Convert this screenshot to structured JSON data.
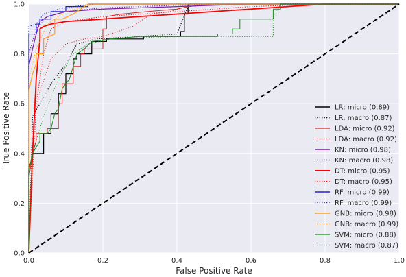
{
  "chart_data": {
    "type": "line",
    "title": "",
    "xlabel": "False Positive Rate",
    "ylabel": "True Positive Rate",
    "xlim": [
      0,
      1
    ],
    "ylim": [
      0,
      1
    ],
    "xticks": [
      "0.0",
      "0.2",
      "0.4",
      "0.6",
      "0.8",
      "1.0"
    ],
    "yticks": [
      "0.0",
      "0.2",
      "0.4",
      "0.6",
      "0.8",
      "1.0"
    ],
    "grid": true,
    "legend_position": "lower-right",
    "background": "#eaeaf2",
    "series": [
      {
        "name": "LR: micro (0.89)",
        "color": "#000000",
        "dash": "solid",
        "width": 1.2,
        "points": [
          [
            0,
            0
          ],
          [
            0,
            0.35
          ],
          [
            0.01,
            0.37
          ],
          [
            0.01,
            0.4
          ],
          [
            0.04,
            0.4
          ],
          [
            0.04,
            0.48
          ],
          [
            0.06,
            0.48
          ],
          [
            0.06,
            0.56
          ],
          [
            0.08,
            0.56
          ],
          [
            0.08,
            0.64
          ],
          [
            0.1,
            0.64
          ],
          [
            0.1,
            0.72
          ],
          [
            0.12,
            0.72
          ],
          [
            0.12,
            0.78
          ],
          [
            0.13,
            0.78
          ],
          [
            0.13,
            0.8
          ],
          [
            0.17,
            0.8
          ],
          [
            0.17,
            0.85
          ],
          [
            0.21,
            0.85
          ],
          [
            0.21,
            0.86
          ],
          [
            0.31,
            0.86
          ],
          [
            0.31,
            0.87
          ],
          [
            0.41,
            0.87
          ],
          [
            0.41,
            0.89
          ],
          [
            0.42,
            0.89
          ],
          [
            0.42,
            0.96
          ],
          [
            0.43,
            0.96
          ],
          [
            0.43,
            1.0
          ],
          [
            1,
            1
          ]
        ]
      },
      {
        "name": "LR: macro (0.87)",
        "color": "#000000",
        "dash": "dotted",
        "width": 1.2,
        "points": [
          [
            0,
            0
          ],
          [
            0.01,
            0.55
          ],
          [
            0.03,
            0.6
          ],
          [
            0.06,
            0.68
          ],
          [
            0.1,
            0.76
          ],
          [
            0.13,
            0.84
          ],
          [
            0.18,
            0.86
          ],
          [
            0.3,
            0.87
          ],
          [
            0.4,
            0.88
          ],
          [
            0.43,
            0.99
          ],
          [
            0.5,
            1.0
          ],
          [
            1,
            1
          ]
        ]
      },
      {
        "name": "LDA: micro (0.92)",
        "color": "#d62728",
        "dash": "solid",
        "width": 1.0,
        "points": [
          [
            0,
            0
          ],
          [
            0,
            0.3
          ],
          [
            0.01,
            0.4
          ],
          [
            0.02,
            0.45
          ],
          [
            0.02,
            0.48
          ],
          [
            0.05,
            0.48
          ],
          [
            0.05,
            0.5
          ],
          [
            0.08,
            0.5
          ],
          [
            0.08,
            0.6
          ],
          [
            0.09,
            0.6
          ],
          [
            0.09,
            0.68
          ],
          [
            0.12,
            0.68
          ],
          [
            0.12,
            0.75
          ],
          [
            0.14,
            0.75
          ],
          [
            0.14,
            0.8
          ],
          [
            0.15,
            0.8
          ],
          [
            0.15,
            0.82
          ],
          [
            0.2,
            0.82
          ],
          [
            0.2,
            0.9
          ],
          [
            0.21,
            0.9
          ],
          [
            0.21,
            0.95
          ],
          [
            0.25,
            0.96
          ],
          [
            0.32,
            0.97
          ],
          [
            0.4,
            0.98
          ],
          [
            0.43,
            0.99
          ],
          [
            0.5,
            1.0
          ],
          [
            1,
            1
          ]
        ]
      },
      {
        "name": "LDA: macro (0.92)",
        "color": "#d62728",
        "dash": "dotted",
        "width": 1.0,
        "points": [
          [
            0,
            0
          ],
          [
            0.01,
            0.5
          ],
          [
            0.03,
            0.65
          ],
          [
            0.06,
            0.78
          ],
          [
            0.1,
            0.84
          ],
          [
            0.15,
            0.86
          ],
          [
            0.2,
            0.87
          ],
          [
            0.28,
            0.91
          ],
          [
            0.33,
            0.96
          ],
          [
            0.38,
            0.97
          ],
          [
            0.43,
            0.99
          ],
          [
            0.5,
            1.0
          ],
          [
            1,
            1
          ]
        ]
      },
      {
        "name": "KN: micro (0.98)",
        "color": "#7b1fa2",
        "dash": "solid",
        "width": 1.2,
        "points": [
          [
            0,
            0
          ],
          [
            0,
            0.75
          ],
          [
            0.01,
            0.82
          ],
          [
            0.02,
            0.88
          ],
          [
            0.03,
            0.93
          ],
          [
            0.05,
            0.95
          ],
          [
            0.1,
            0.97
          ],
          [
            0.2,
            0.98
          ],
          [
            0.3,
            0.985
          ],
          [
            0.4,
            0.99
          ],
          [
            0.5,
            0.995
          ],
          [
            0.6,
            1.0
          ],
          [
            1,
            1
          ]
        ]
      },
      {
        "name": "KN: macro (0.98)",
        "color": "#7b1fa2",
        "dash": "dotted",
        "width": 1.2,
        "points": [
          [
            0,
            0
          ],
          [
            0,
            0.8
          ],
          [
            0.02,
            0.9
          ],
          [
            0.05,
            0.95
          ],
          [
            0.1,
            0.97
          ],
          [
            0.2,
            0.985
          ],
          [
            0.4,
            0.995
          ],
          [
            0.6,
            1.0
          ],
          [
            1,
            1
          ]
        ]
      },
      {
        "name": "DT: micro (0.95)",
        "color": "#ff0000",
        "dash": "solid",
        "width": 1.8,
        "points": [
          [
            0,
            0
          ],
          [
            0.01,
            0.4
          ],
          [
            0.02,
            0.7
          ],
          [
            0.03,
            0.86
          ],
          [
            0.03,
            0.9
          ],
          [
            0.04,
            0.91
          ],
          [
            0.06,
            0.92
          ],
          [
            0.1,
            0.93
          ],
          [
            0.2,
            0.94
          ],
          [
            0.3,
            0.95
          ],
          [
            0.4,
            0.96
          ],
          [
            0.5,
            0.97
          ],
          [
            0.6,
            0.98
          ],
          [
            0.7,
            0.99
          ],
          [
            0.8,
            1.0
          ],
          [
            1,
            1
          ]
        ]
      },
      {
        "name": "DT: macro (0.95)",
        "color": "#ff0000",
        "dash": "dotted",
        "width": 1.0,
        "points": [
          [
            0,
            0
          ],
          [
            0.02,
            0.6
          ],
          [
            0.04,
            0.8
          ],
          [
            0.06,
            0.9
          ],
          [
            0.1,
            0.93
          ],
          [
            0.2,
            0.95
          ],
          [
            0.4,
            0.97
          ],
          [
            0.6,
            0.99
          ],
          [
            0.8,
            1.0
          ],
          [
            1,
            1
          ]
        ]
      },
      {
        "name": "RF: micro (0.99)",
        "color": "#1f1fcf",
        "dash": "solid",
        "width": 1.2,
        "points": [
          [
            0,
            0
          ],
          [
            0,
            0.88
          ],
          [
            0.02,
            0.88
          ],
          [
            0.02,
            0.92
          ],
          [
            0.03,
            0.92
          ],
          [
            0.03,
            0.94
          ],
          [
            0.06,
            0.94
          ],
          [
            0.06,
            0.97
          ],
          [
            0.1,
            0.97
          ],
          [
            0.1,
            0.99
          ],
          [
            0.16,
            0.99
          ],
          [
            0.16,
            1.0
          ],
          [
            1,
            1
          ]
        ]
      },
      {
        "name": "RF: macro (0.99)",
        "color": "#1f1fcf",
        "dash": "dotted",
        "width": 1.2,
        "points": [
          [
            0,
            0
          ],
          [
            0,
            0.91
          ],
          [
            0.02,
            0.92
          ],
          [
            0.04,
            0.96
          ],
          [
            0.08,
            0.98
          ],
          [
            0.12,
            0.99
          ],
          [
            0.18,
            1.0
          ],
          [
            1,
            1
          ]
        ]
      },
      {
        "name": "GNB: micro (0.98)",
        "color": "#ff9f1c",
        "dash": "solid",
        "width": 1.2,
        "points": [
          [
            0,
            0
          ],
          [
            0,
            0.65
          ],
          [
            0.01,
            0.72
          ],
          [
            0.02,
            0.76
          ],
          [
            0.02,
            0.8
          ],
          [
            0.04,
            0.8
          ],
          [
            0.04,
            0.86
          ],
          [
            0.07,
            0.88
          ],
          [
            0.07,
            0.94
          ],
          [
            0.09,
            0.94
          ],
          [
            0.12,
            0.96
          ],
          [
            0.14,
            0.98
          ],
          [
            0.16,
            1.0
          ],
          [
            1,
            1
          ]
        ]
      },
      {
        "name": "GNB: macro (0.99)",
        "color": "#ff9f1c",
        "dash": "dotted",
        "width": 1.2,
        "points": [
          [
            0,
            0
          ],
          [
            0,
            0.7
          ],
          [
            0.02,
            0.82
          ],
          [
            0.05,
            0.92
          ],
          [
            0.1,
            0.97
          ],
          [
            0.18,
            1.0
          ],
          [
            1,
            1
          ]
        ]
      },
      {
        "name": "SVM: micro (0.88)",
        "color": "#1a8a1a",
        "dash": "solid",
        "width": 1.0,
        "points": [
          [
            0,
            0
          ],
          [
            0,
            0.33
          ],
          [
            0.01,
            0.4
          ],
          [
            0.03,
            0.45
          ],
          [
            0.03,
            0.48
          ],
          [
            0.05,
            0.48
          ],
          [
            0.06,
            0.5
          ],
          [
            0.07,
            0.56
          ],
          [
            0.08,
            0.58
          ],
          [
            0.09,
            0.66
          ],
          [
            0.11,
            0.7
          ],
          [
            0.12,
            0.75
          ],
          [
            0.13,
            0.8
          ],
          [
            0.15,
            0.82
          ],
          [
            0.17,
            0.85
          ],
          [
            0.22,
            0.86
          ],
          [
            0.3,
            0.87
          ],
          [
            0.51,
            0.87
          ],
          [
            0.51,
            0.88
          ],
          [
            0.55,
            0.88
          ],
          [
            0.55,
            0.9
          ],
          [
            0.57,
            0.9
          ],
          [
            0.57,
            0.94
          ],
          [
            0.66,
            0.94
          ],
          [
            0.66,
            0.98
          ],
          [
            0.68,
            0.98
          ],
          [
            0.68,
            1.0
          ],
          [
            1,
            1
          ]
        ]
      },
      {
        "name": "SVM: macro (0.87)",
        "color": "#1a8a1a",
        "dash": "dotted",
        "width": 1.0,
        "points": [
          [
            0,
            0
          ],
          [
            0.01,
            0.4
          ],
          [
            0.04,
            0.55
          ],
          [
            0.08,
            0.7
          ],
          [
            0.12,
            0.8
          ],
          [
            0.16,
            0.84
          ],
          [
            0.22,
            0.86
          ],
          [
            0.4,
            0.87
          ],
          [
            0.6,
            0.87
          ],
          [
            0.66,
            0.87
          ],
          [
            0.66,
            0.95
          ],
          [
            0.68,
            1.0
          ],
          [
            1,
            1
          ]
        ]
      }
    ],
    "reference_line": {
      "points": [
        [
          0,
          0
        ],
        [
          1,
          1
        ]
      ],
      "color": "#000000",
      "dash": "dashed"
    }
  }
}
